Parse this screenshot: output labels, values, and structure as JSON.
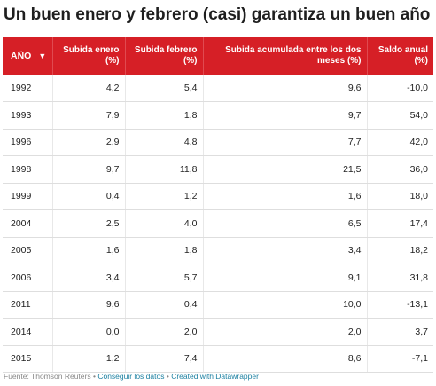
{
  "title": "Un buen enero y febrero (casi) garantiza un buen año",
  "chart_data": {
    "type": "table",
    "columns": [
      {
        "label": "AÑO",
        "sort": "▼"
      },
      {
        "label": "Subida enero (%)"
      },
      {
        "label": "Subida febrero (%)"
      },
      {
        "label": "Subida acumulada entre los dos meses (%)"
      },
      {
        "label": "Saldo anual (%)"
      }
    ],
    "rows": [
      [
        "1992",
        "4,2",
        "5,4",
        "9,6",
        "-10,0"
      ],
      [
        "1993",
        "7,9",
        "1,8",
        "9,7",
        "54,0"
      ],
      [
        "1996",
        "2,9",
        "4,8",
        "7,7",
        "42,0"
      ],
      [
        "1998",
        "9,7",
        "11,8",
        "21,5",
        "36,0"
      ],
      [
        "1999",
        "0,4",
        "1,2",
        "1,6",
        "18,0"
      ],
      [
        "2004",
        "2,5",
        "4,0",
        "6,5",
        "17,4"
      ],
      [
        "2005",
        "1,6",
        "1,8",
        "3,4",
        "18,2"
      ],
      [
        "2006",
        "3,4",
        "5,7",
        "9,1",
        "31,8"
      ],
      [
        "2011",
        "9,6",
        "0,4",
        "10,0",
        "-13,1"
      ],
      [
        "2014",
        "0,0",
        "2,0",
        "2,0",
        "3,7"
      ],
      [
        "2015",
        "1,2",
        "7,4",
        "8,6",
        "-7,1"
      ]
    ]
  },
  "footer": {
    "source": "Fuente: Thomson Reuters",
    "separator": "•",
    "get_data": "Conseguir los datos",
    "credit": "Created with Datawrapper"
  },
  "colors": {
    "header_bg": "#d61f26",
    "link": "#1d81a2"
  }
}
